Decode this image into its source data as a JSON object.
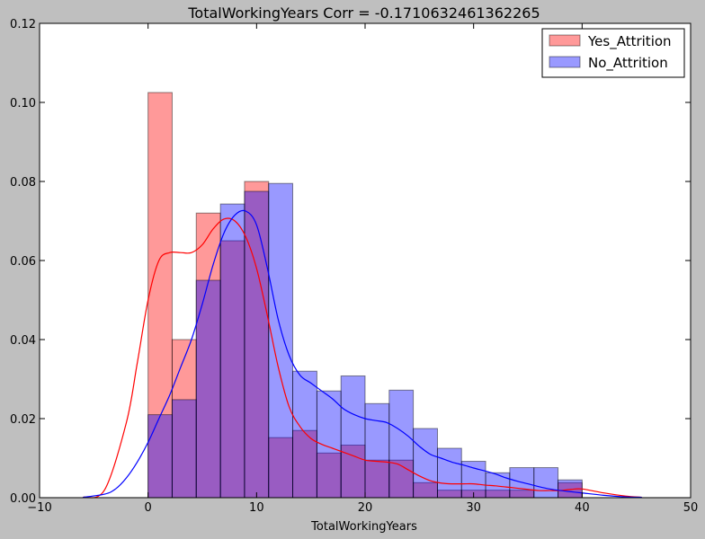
{
  "chart_data": {
    "type": "bar",
    "title": "TotalWorkingYears Corr = -0.1710632461362265",
    "xlabel": "TotalWorkingYears",
    "ylabel": "",
    "xlim": [
      -10,
      50
    ],
    "ylim": [
      0,
      0.12
    ],
    "x_ticks": [
      "−10",
      "0",
      "10",
      "20",
      "30",
      "40",
      "50"
    ],
    "y_ticks": [
      "0.00",
      "0.02",
      "0.04",
      "0.06",
      "0.08",
      "0.10",
      "0.12"
    ],
    "grid": false,
    "legend_position": "top-right",
    "bin_edges": [
      0,
      2.22,
      4.44,
      6.67,
      8.89,
      11.11,
      13.33,
      15.56,
      17.78,
      20,
      22.22,
      24.44,
      26.67,
      28.89,
      31.11,
      33.33,
      35.56,
      37.78,
      40
    ],
    "series": [
      {
        "name": "Yes_Attrition",
        "color": "#ff0000",
        "values": [
          0.1025,
          0.04,
          0.072,
          0.065,
          0.08,
          0.0152,
          0.017,
          0.0113,
          0.0133,
          0.0095,
          0.0095,
          0.0038,
          0.0019,
          0.0019,
          0.0019,
          0.0019,
          0,
          0.0038
        ],
        "kde_x": [
          -6,
          -4,
          -2,
          -1,
          0,
          1,
          2,
          3,
          4,
          5,
          6,
          7,
          8,
          9,
          10,
          11,
          12,
          13,
          14,
          15,
          16,
          17,
          18,
          19,
          20,
          21,
          22,
          23,
          24,
          25,
          26,
          27,
          28,
          29,
          30,
          31,
          32,
          33,
          34,
          35,
          36,
          37,
          38,
          39,
          40,
          42,
          44,
          45.5
        ],
        "kde_y": [
          0.0001,
          0.002,
          0.019,
          0.034,
          0.05,
          0.06,
          0.062,
          0.062,
          0.062,
          0.064,
          0.068,
          0.0705,
          0.07,
          0.066,
          0.058,
          0.046,
          0.033,
          0.023,
          0.018,
          0.015,
          0.0135,
          0.0125,
          0.0115,
          0.0105,
          0.0095,
          0.0092,
          0.009,
          0.0085,
          0.007,
          0.0055,
          0.0043,
          0.0037,
          0.0035,
          0.0035,
          0.0035,
          0.0032,
          0.003,
          0.0027,
          0.0024,
          0.0021,
          0.0018,
          0.0018,
          0.0018,
          0.0021,
          0.0022,
          0.0012,
          0.0004,
          0.0001
        ]
      },
      {
        "name": "No_Attrition",
        "color": "#0000ff",
        "values": [
          0.021,
          0.0248,
          0.055,
          0.0743,
          0.0775,
          0.0795,
          0.032,
          0.027,
          0.0308,
          0.0238,
          0.0272,
          0.0175,
          0.0125,
          0.0092,
          0.0063,
          0.0076,
          0.0076,
          0.0045
        ],
        "kde_x": [
          -6,
          -4,
          -3,
          -2,
          -1,
          0,
          1,
          2,
          3,
          4,
          5,
          6,
          7,
          8,
          9,
          10,
          11,
          12,
          13,
          14,
          15,
          16,
          17,
          18,
          19,
          20,
          21,
          22,
          23,
          24,
          25,
          26,
          27,
          28,
          29,
          30,
          31,
          32,
          33,
          34,
          35,
          36,
          37,
          38,
          39,
          40,
          42,
          44,
          45.5
        ],
        "kde_y": [
          0.0001,
          0.0009,
          0.0022,
          0.005,
          0.009,
          0.014,
          0.02,
          0.026,
          0.033,
          0.04,
          0.049,
          0.059,
          0.067,
          0.0715,
          0.0725,
          0.069,
          0.058,
          0.045,
          0.036,
          0.031,
          0.029,
          0.027,
          0.025,
          0.0225,
          0.021,
          0.02,
          0.0195,
          0.019,
          0.0175,
          0.0155,
          0.013,
          0.011,
          0.01,
          0.009,
          0.0083,
          0.0075,
          0.0068,
          0.006,
          0.005,
          0.0042,
          0.0035,
          0.0028,
          0.0022,
          0.0018,
          0.0015,
          0.0012,
          0.0006,
          0.0002,
          0.0001
        ]
      }
    ]
  }
}
